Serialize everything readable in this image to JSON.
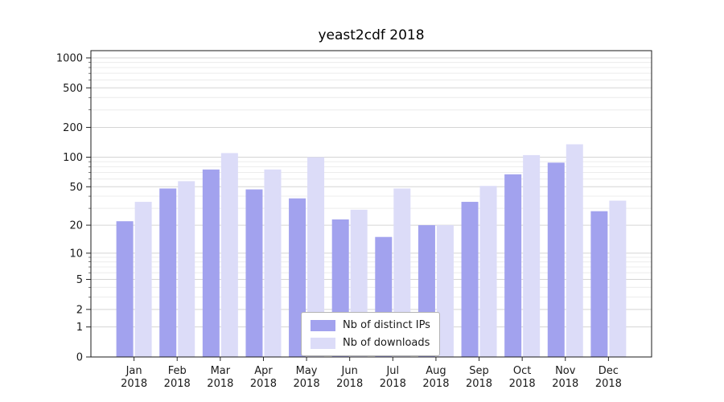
{
  "title": "yeast2cdf 2018",
  "legend": {
    "items": [
      {
        "label": "Nb of distinct IPs",
        "color": "#a2a2ee"
      },
      {
        "label": "Nb of downloads",
        "color": "#dcdcf8"
      }
    ]
  },
  "chart_data": {
    "type": "bar",
    "title": "yeast2cdf 2018",
    "categories": [
      "Jan 2018",
      "Feb 2018",
      "Mar 2018",
      "Apr 2018",
      "May 2018",
      "Jun 2018",
      "Jul 2018",
      "Aug 2018",
      "Sep 2018",
      "Oct 2018",
      "Nov 2018",
      "Dec 2018"
    ],
    "series": [
      {
        "name": "Nb of distinct IPs",
        "color": "#a2a2ee",
        "values": [
          22,
          48,
          75,
          47,
          38,
          23,
          15,
          20,
          35,
          67,
          88,
          28
        ]
      },
      {
        "name": "Nb of downloads",
        "color": "#dcdcf8",
        "values": [
          35,
          57,
          110,
          75,
          100,
          29,
          48,
          20,
          51,
          105,
          135,
          36
        ]
      }
    ],
    "yscale": "log1p",
    "yticks": [
      0,
      1,
      2,
      5,
      10,
      20,
      50,
      100,
      200,
      500,
      1000
    ],
    "minor_yticks": [
      3,
      4,
      6,
      7,
      8,
      9,
      30,
      40,
      60,
      70,
      80,
      90,
      300,
      400,
      600,
      700,
      800,
      900
    ],
    "ylim": [
      0,
      1180
    ],
    "grid": true,
    "legend_position": "lower center",
    "xlabel": "",
    "ylabel": ""
  }
}
